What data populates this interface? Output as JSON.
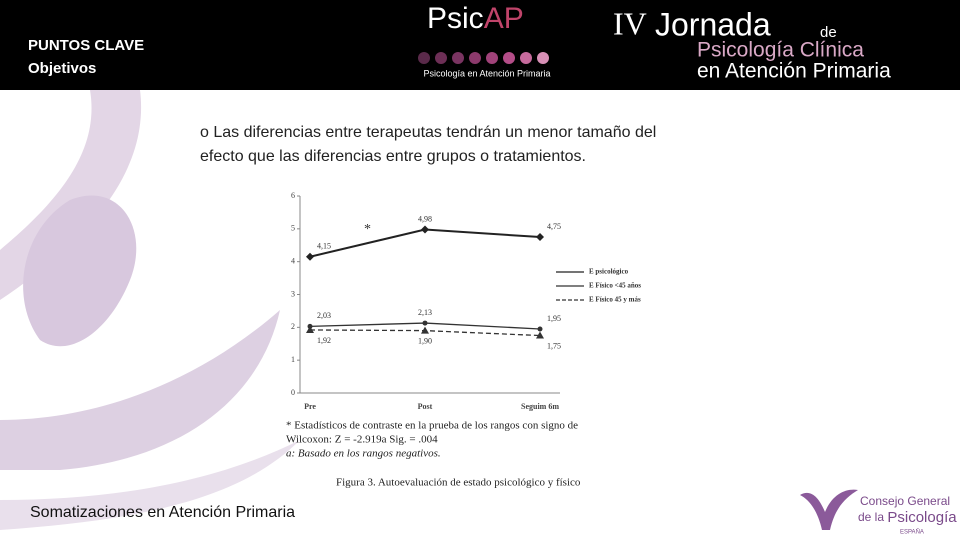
{
  "header": {
    "section": "PUNTOS CLAVE",
    "subsection": "Objetivos",
    "logo_left": {
      "part1": "Psic",
      "part2": "AP",
      "tagline": "Psicología en Atención Primaria"
    },
    "logo_right": {
      "roman": "IV",
      "word": "Jornada",
      "de": "de",
      "line2": "Psicología Clínica",
      "line3": "en Atención Primaria"
    }
  },
  "body_text": [
    "o Las diferencias entre terapeutas tendrán un menor tamaño del",
    "efecto que las diferencias entre grupos o tratamientos."
  ],
  "chart_data": {
    "type": "line",
    "categories": [
      "Pre",
      "Post",
      "Seguim 6m"
    ],
    "ylim": [
      0,
      6
    ],
    "yticks": [
      0,
      1,
      2,
      3,
      4,
      5,
      6
    ],
    "annotation": "*",
    "series": [
      {
        "name": "E psicológico",
        "color": "#222222",
        "marker": "diamond",
        "dashed": false,
        "values": [
          4.15,
          4.98,
          4.75
        ],
        "value_labels": [
          "4,15",
          "4,98",
          "4,75"
        ],
        "label_side": "above"
      },
      {
        "name": "E Físico <45 años",
        "color": "#333333",
        "marker": "dot",
        "dashed": false,
        "values": [
          2.03,
          2.13,
          1.95
        ],
        "value_labels": [
          "2,03",
          "2,13",
          "1,95"
        ],
        "label_side": "above"
      },
      {
        "name": "E Físico 45 y más",
        "color": "#333333",
        "marker": "triangle",
        "dashed": true,
        "values": [
          1.92,
          1.9,
          1.75
        ],
        "value_labels": [
          "1,92",
          "1,90",
          "1,75"
        ],
        "label_side": "below"
      }
    ],
    "notes": [
      "* Estadísticos de contraste en la prueba de los rangos con signo de",
      "Wilcoxon: Z = -2.919a    Sig. = .004",
      "a: Basado en los rangos negativos."
    ],
    "caption": "Figura 3. Autoevaluación de estado psicológico y físico"
  },
  "footer": {
    "text": "Somatizaciones en Atención Primaria",
    "logo": {
      "line1": "Consejo General",
      "line2a": "de la",
      "line2b": "Psicología",
      "line3": "ESPAÑA"
    }
  }
}
